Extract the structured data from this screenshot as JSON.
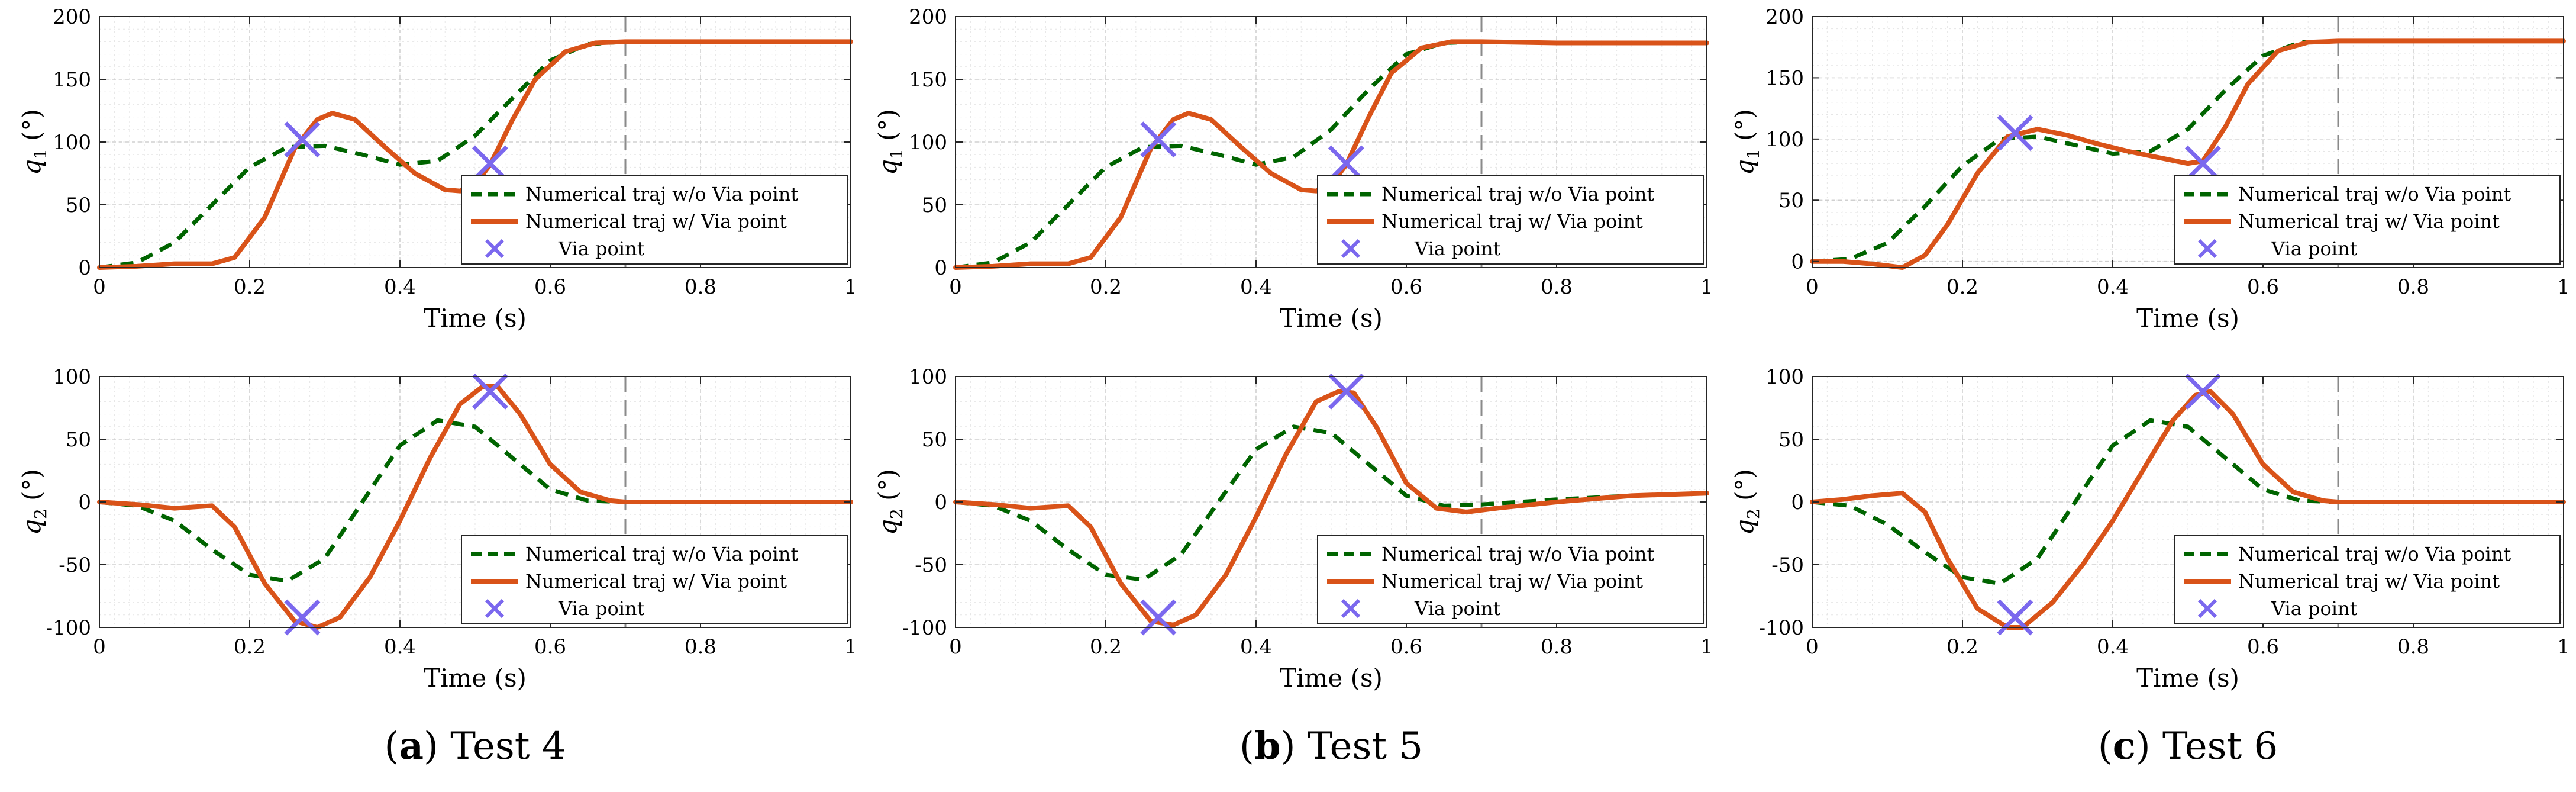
{
  "chart_data": [
    {
      "panel": "a",
      "row": 1,
      "type": "line",
      "title": "",
      "xlabel": "Time (s)",
      "ylabel": "q",
      "ylabel_sub": "1",
      "ylabel_unit": " (°)",
      "xlim": [
        0,
        1
      ],
      "ylim": [
        0,
        200
      ],
      "xticks": [
        "0",
        "0.2",
        "0.4",
        "0.6",
        "0.8",
        "1"
      ],
      "yticks": [
        "0",
        "50",
        "100",
        "150",
        "200"
      ],
      "vline_x": 0.7,
      "legend_position": "lower-right",
      "series": [
        {
          "name": "Numerical traj w/o Via point",
          "style": "dashed",
          "color": "#006400",
          "x": [
            0,
            0.05,
            0.1,
            0.15,
            0.2,
            0.25,
            0.3,
            0.35,
            0.4,
            0.45,
            0.5,
            0.55,
            0.6,
            0.65,
            0.7,
            0.8,
            0.9,
            1.0
          ],
          "y": [
            0,
            4,
            20,
            50,
            80,
            96,
            97,
            90,
            82,
            85,
            105,
            135,
            165,
            178,
            180,
            180,
            180,
            180
          ]
        },
        {
          "name": "Numerical traj w/ Via point",
          "style": "solid",
          "color": "#d95319",
          "x": [
            0,
            0.05,
            0.1,
            0.15,
            0.18,
            0.22,
            0.26,
            0.29,
            0.31,
            0.34,
            0.38,
            0.42,
            0.46,
            0.48,
            0.5,
            0.52,
            0.55,
            0.58,
            0.62,
            0.66,
            0.7,
            0.8,
            0.9,
            1.0
          ],
          "y": [
            0,
            1,
            3,
            3,
            8,
            40,
            95,
            118,
            123,
            118,
            96,
            75,
            62,
            61,
            66,
            82,
            118,
            150,
            172,
            179,
            180,
            180,
            180,
            180
          ]
        }
      ],
      "via_points": {
        "name": "Via point",
        "x": [
          0.27,
          0.52
        ],
        "y": [
          102,
          83
        ]
      }
    },
    {
      "panel": "b",
      "row": 1,
      "type": "line",
      "title": "",
      "xlabel": "Time (s)",
      "ylabel": "q",
      "ylabel_sub": "1",
      "ylabel_unit": " (°)",
      "xlim": [
        0,
        1
      ],
      "ylim": [
        0,
        200
      ],
      "xticks": [
        "0",
        "0.2",
        "0.4",
        "0.6",
        "0.8",
        "1"
      ],
      "yticks": [
        "0",
        "50",
        "100",
        "150",
        "200"
      ],
      "vline_x": 0.7,
      "legend_position": "lower-right",
      "series": [
        {
          "name": "Numerical traj w/o Via point",
          "style": "dashed",
          "color": "#006400",
          "x": [
            0,
            0.05,
            0.1,
            0.15,
            0.2,
            0.25,
            0.3,
            0.35,
            0.4,
            0.45,
            0.5,
            0.55,
            0.6,
            0.65,
            0.7,
            0.8,
            0.9,
            1.0
          ],
          "y": [
            0,
            4,
            20,
            50,
            80,
            96,
            97,
            90,
            82,
            88,
            110,
            142,
            170,
            179,
            180,
            179,
            179,
            179
          ]
        },
        {
          "name": "Numerical traj w/ Via point",
          "style": "solid",
          "color": "#d95319",
          "x": [
            0,
            0.05,
            0.1,
            0.15,
            0.18,
            0.22,
            0.26,
            0.29,
            0.31,
            0.34,
            0.38,
            0.42,
            0.46,
            0.48,
            0.5,
            0.52,
            0.55,
            0.58,
            0.62,
            0.66,
            0.7,
            0.8,
            0.9,
            1.0
          ],
          "y": [
            0,
            1,
            3,
            3,
            8,
            40,
            95,
            118,
            123,
            118,
            96,
            75,
            62,
            61,
            66,
            82,
            120,
            155,
            175,
            180,
            180,
            179,
            179,
            179
          ]
        }
      ],
      "via_points": {
        "name": "Via point",
        "x": [
          0.27,
          0.52
        ],
        "y": [
          102,
          83
        ]
      }
    },
    {
      "panel": "c",
      "row": 1,
      "type": "line",
      "title": "",
      "xlabel": "Time (s)",
      "ylabel": "q",
      "ylabel_sub": "1",
      "ylabel_unit": " (°)",
      "xlim": [
        0,
        1
      ],
      "ylim": [
        -5,
        200
      ],
      "xticks": [
        "0",
        "0.2",
        "0.4",
        "0.6",
        "0.8",
        "1"
      ],
      "yticks": [
        "0",
        "50",
        "100",
        "150",
        "200"
      ],
      "vline_x": 0.7,
      "legend_position": "lower-right",
      "series": [
        {
          "name": "Numerical traj w/o Via point",
          "style": "dashed",
          "color": "#006400",
          "x": [
            0,
            0.05,
            0.1,
            0.15,
            0.2,
            0.25,
            0.3,
            0.35,
            0.4,
            0.45,
            0.5,
            0.55,
            0.6,
            0.65,
            0.7,
            0.8,
            0.9,
            1.0
          ],
          "y": [
            0,
            2,
            15,
            45,
            78,
            100,
            102,
            95,
            88,
            90,
            108,
            140,
            168,
            179,
            180,
            180,
            180,
            180
          ]
        },
        {
          "name": "Numerical traj w/ Via point",
          "style": "solid",
          "color": "#d95319",
          "x": [
            0,
            0.04,
            0.08,
            0.12,
            0.15,
            0.18,
            0.22,
            0.26,
            0.3,
            0.34,
            0.38,
            0.42,
            0.46,
            0.5,
            0.52,
            0.55,
            0.58,
            0.62,
            0.66,
            0.7,
            0.8,
            0.9,
            1.0
          ],
          "y": [
            0,
            0,
            -2,
            -5,
            5,
            30,
            72,
            102,
            108,
            103,
            96,
            90,
            85,
            80,
            82,
            110,
            145,
            172,
            179,
            180,
            180,
            180,
            180
          ]
        }
      ],
      "via_points": {
        "name": "Via point",
        "x": [
          0.27,
          0.52
        ],
        "y": [
          105,
          80
        ]
      }
    },
    {
      "panel": "a",
      "row": 2,
      "type": "line",
      "title": "",
      "xlabel": "Time (s)",
      "ylabel": "q",
      "ylabel_sub": "2",
      "ylabel_unit": " (°)",
      "xlim": [
        0,
        1
      ],
      "ylim": [
        -100,
        100
      ],
      "xticks": [
        "0",
        "0.2",
        "0.4",
        "0.6",
        "0.8",
        "1"
      ],
      "yticks": [
        "-100",
        "-50",
        "0",
        "50",
        "100"
      ],
      "vline_x": 0.7,
      "legend_position": "lower-right",
      "series": [
        {
          "name": "Numerical traj w/o Via point",
          "style": "dashed",
          "color": "#006400",
          "x": [
            0,
            0.05,
            0.1,
            0.15,
            0.2,
            0.25,
            0.3,
            0.35,
            0.4,
            0.45,
            0.5,
            0.55,
            0.6,
            0.65,
            0.7,
            0.8,
            0.9,
            1.0
          ],
          "y": [
            0,
            -3,
            -15,
            -38,
            -58,
            -63,
            -45,
            0,
            45,
            65,
            60,
            35,
            10,
            1,
            0,
            0,
            0,
            0
          ]
        },
        {
          "name": "Numerical traj w/ Via point",
          "style": "solid",
          "color": "#d95319",
          "x": [
            0,
            0.05,
            0.1,
            0.15,
            0.18,
            0.22,
            0.26,
            0.29,
            0.32,
            0.36,
            0.4,
            0.44,
            0.48,
            0.51,
            0.53,
            0.56,
            0.6,
            0.64,
            0.68,
            0.7,
            0.8,
            0.9,
            1.0
          ],
          "y": [
            0,
            -2,
            -5,
            -3,
            -20,
            -65,
            -95,
            -100,
            -92,
            -60,
            -15,
            35,
            78,
            92,
            92,
            70,
            30,
            8,
            1,
            0,
            0,
            0,
            0
          ]
        }
      ],
      "via_points": {
        "name": "Via point",
        "x": [
          0.27,
          0.52
        ],
        "y": [
          -92,
          88
        ]
      }
    },
    {
      "panel": "b",
      "row": 2,
      "type": "line",
      "title": "",
      "xlabel": "Time (s)",
      "ylabel": "q",
      "ylabel_sub": "2",
      "ylabel_unit": " (°)",
      "xlim": [
        0,
        1
      ],
      "ylim": [
        -100,
        100
      ],
      "xticks": [
        "0",
        "0.2",
        "0.4",
        "0.6",
        "0.8",
        "1"
      ],
      "yticks": [
        "-100",
        "-50",
        "0",
        "50",
        "100"
      ],
      "vline_x": 0.7,
      "legend_position": "lower-right",
      "series": [
        {
          "name": "Numerical traj w/o Via point",
          "style": "dashed",
          "color": "#006400",
          "x": [
            0,
            0.05,
            0.1,
            0.15,
            0.2,
            0.25,
            0.3,
            0.35,
            0.4,
            0.45,
            0.5,
            0.55,
            0.6,
            0.65,
            0.7,
            0.8,
            0.9,
            1.0
          ],
          "y": [
            0,
            -3,
            -15,
            -38,
            -58,
            -62,
            -42,
            0,
            42,
            60,
            55,
            30,
            5,
            -3,
            -2,
            2,
            5,
            7
          ]
        },
        {
          "name": "Numerical traj w/ Via point",
          "style": "solid",
          "color": "#d95319",
          "x": [
            0,
            0.05,
            0.1,
            0.15,
            0.18,
            0.22,
            0.26,
            0.29,
            0.32,
            0.36,
            0.4,
            0.44,
            0.48,
            0.51,
            0.53,
            0.56,
            0.6,
            0.64,
            0.68,
            0.72,
            0.8,
            0.9,
            1.0
          ],
          "y": [
            0,
            -2,
            -5,
            -3,
            -20,
            -65,
            -95,
            -98,
            -90,
            -58,
            -12,
            38,
            80,
            88,
            87,
            60,
            15,
            -5,
            -8,
            -5,
            0,
            5,
            7
          ]
        }
      ],
      "via_points": {
        "name": "Via point",
        "x": [
          0.27,
          0.52
        ],
        "y": [
          -92,
          88
        ]
      }
    },
    {
      "panel": "c",
      "row": 2,
      "type": "line",
      "title": "",
      "xlabel": "Time (s)",
      "ylabel": "q",
      "ylabel_sub": "2",
      "ylabel_unit": " (°)",
      "xlim": [
        0,
        1
      ],
      "ylim": [
        -100,
        100
      ],
      "xticks": [
        "0",
        "0.2",
        "0.4",
        "0.6",
        "0.8",
        "1"
      ],
      "yticks": [
        "-100",
        "-50",
        "0",
        "50",
        "100"
      ],
      "vline_x": 0.7,
      "legend_position": "lower-right",
      "series": [
        {
          "name": "Numerical traj w/o Via point",
          "style": "dashed",
          "color": "#006400",
          "x": [
            0,
            0.05,
            0.1,
            0.15,
            0.2,
            0.25,
            0.3,
            0.35,
            0.4,
            0.45,
            0.5,
            0.55,
            0.6,
            0.65,
            0.7,
            0.8,
            0.9,
            1.0
          ],
          "y": [
            0,
            -3,
            -18,
            -40,
            -60,
            -65,
            -45,
            0,
            45,
            65,
            60,
            35,
            10,
            1,
            0,
            0,
            0,
            0
          ]
        },
        {
          "name": "Numerical traj w/ Via point",
          "style": "solid",
          "color": "#d95319",
          "x": [
            0,
            0.04,
            0.08,
            0.12,
            0.15,
            0.18,
            0.22,
            0.26,
            0.28,
            0.32,
            0.36,
            0.4,
            0.44,
            0.48,
            0.51,
            0.53,
            0.56,
            0.6,
            0.64,
            0.68,
            0.7,
            0.8,
            0.9,
            1.0
          ],
          "y": [
            0,
            2,
            5,
            7,
            -8,
            -45,
            -85,
            -100,
            -100,
            -80,
            -50,
            -15,
            25,
            65,
            85,
            88,
            70,
            30,
            8,
            1,
            0,
            0,
            0,
            0
          ]
        }
      ],
      "via_points": {
        "name": "Via point",
        "x": [
          0.27,
          0.52
        ],
        "y": [
          -92,
          88
        ]
      }
    }
  ],
  "captions": [
    {
      "letter": "a",
      "text": "Test 4"
    },
    {
      "letter": "b",
      "text": "Test 5"
    },
    {
      "letter": "c",
      "text": "Test 6"
    }
  ],
  "colors": {
    "dashed": "#006400",
    "solid": "#d95319",
    "via": "#7b68ee"
  }
}
